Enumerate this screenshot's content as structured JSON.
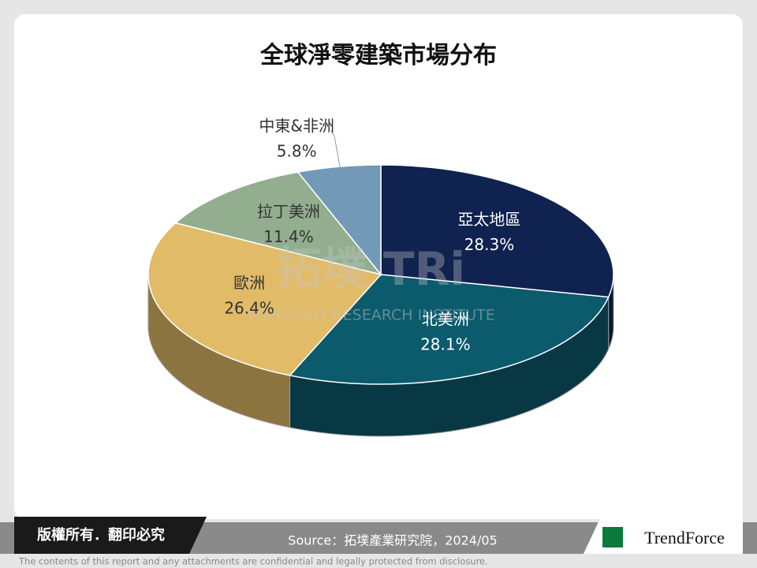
{
  "chart_data": {
    "type": "pie3d",
    "title": "全球淨零建築市場分布",
    "categories": [
      "亞太地區",
      "北美洲",
      "歐洲",
      "拉丁美洲",
      "中東&非洲"
    ],
    "values": [
      28.3,
      28.1,
      26.4,
      11.4,
      5.8
    ],
    "value_labels": [
      "28.3%",
      "28.1%",
      "26.4%",
      "11.4%",
      "5.8%"
    ],
    "colors": [
      "#0f2250",
      "#0b5b6d",
      "#e2bb68",
      "#92ae8e",
      "#7399b8"
    ]
  },
  "watermark": {
    "brand": "拓墣 TRi",
    "name": "TOPOLOGY RESEARCH INSTITUTE"
  },
  "footer": {
    "rights": "版權所有．翻印必究",
    "source": "Source：拓墣產業研究院，2024/05",
    "logo": "TrendForce",
    "disclaimer": "The contents of this report and any attachments are confidential and legally protected from disclosure."
  }
}
